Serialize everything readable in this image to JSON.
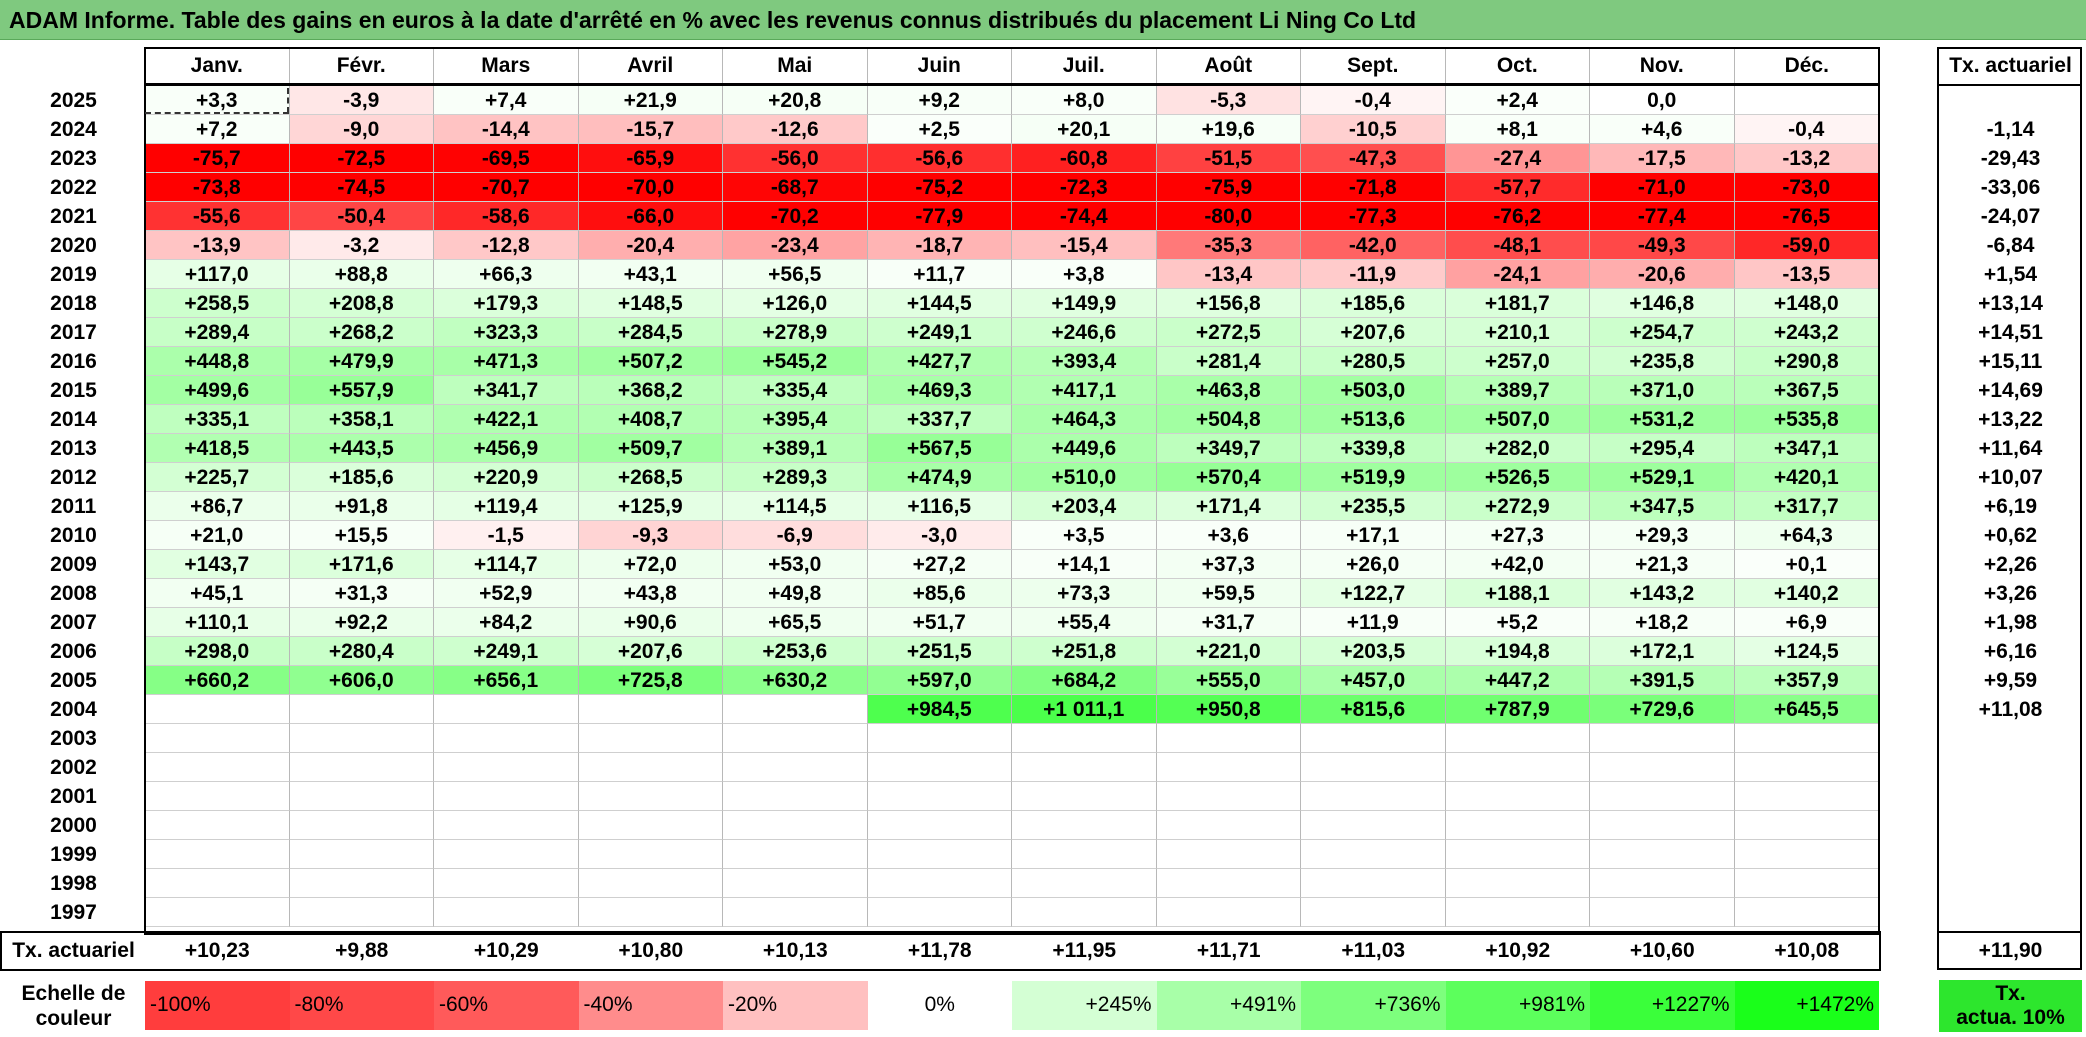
{
  "title": "ADAM Informe. Table des gains en euros à la date d'arrêté en % avec les revenus connus distribués du placement Li Ning Co Ltd",
  "months": [
    "Janv.",
    "Févr.",
    "Mars",
    "Avril",
    "Mai",
    "Juin",
    "Juil.",
    "Août",
    "Sept.",
    "Oct.",
    "Nov.",
    "Déc."
  ],
  "actuarial_header": "Tx. actuariel",
  "footer_label": "Tx. actuariel",
  "scale_label_line1": "Echelle de",
  "scale_label_line2": "couleur",
  "scale": [
    {
      "label": "-100%",
      "color": "#ff3d3d",
      "align": "left"
    },
    {
      "label": "-80%",
      "color": "#ff4848",
      "align": "left"
    },
    {
      "label": "-60%",
      "color": "#ff5a5a",
      "align": "left"
    },
    {
      "label": "-40%",
      "color": "#ff8c8c",
      "align": "left"
    },
    {
      "label": "-20%",
      "color": "#ffc0c0",
      "align": "left"
    },
    {
      "label": "0%",
      "color": "#ffffff",
      "align": "center"
    },
    {
      "label": "+245%",
      "color": "#d4ffd4",
      "align": "right"
    },
    {
      "label": "+491%",
      "color": "#a8ffa8",
      "align": "right"
    },
    {
      "label": "+736%",
      "color": "#7dff7d",
      "align": "right"
    },
    {
      "label": "+981%",
      "color": "#5cff5c",
      "align": "right"
    },
    {
      "label": "+1227%",
      "color": "#3aff3a",
      "align": "right"
    },
    {
      "label": "+1472%",
      "color": "#1aff1a",
      "align": "right"
    }
  ],
  "legend_box_line1": "Tx.",
  "legend_box_line2": "actua. 10%",
  "legend_box_color": "#2de62d",
  "rows": [
    {
      "year": "2025",
      "actuarial": "",
      "values": [
        "+3,3",
        "-3,9",
        "+7,4",
        "+21,9",
        "+20,8",
        "+9,2",
        "+8,0",
        "-5,3",
        "-0,4",
        "+2,4",
        "0,0",
        ""
      ]
    },
    {
      "year": "2024",
      "actuarial": "-1,14",
      "values": [
        "+7,2",
        "-9,0",
        "-14,4",
        "-15,7",
        "-12,6",
        "+2,5",
        "+20,1",
        "+19,6",
        "-10,5",
        "+8,1",
        "+4,6",
        "-0,4"
      ]
    },
    {
      "year": "2023",
      "actuarial": "-29,43",
      "values": [
        "-75,7",
        "-72,5",
        "-69,5",
        "-65,9",
        "-56,0",
        "-56,6",
        "-60,8",
        "-51,5",
        "-47,3",
        "-27,4",
        "-17,5",
        "-13,2"
      ]
    },
    {
      "year": "2022",
      "actuarial": "-33,06",
      "values": [
        "-73,8",
        "-74,5",
        "-70,7",
        "-70,0",
        "-68,7",
        "-75,2",
        "-72,3",
        "-75,9",
        "-71,8",
        "-57,7",
        "-71,0",
        "-73,0"
      ]
    },
    {
      "year": "2021",
      "actuarial": "-24,07",
      "values": [
        "-55,6",
        "-50,4",
        "-58,6",
        "-66,0",
        "-70,2",
        "-77,9",
        "-74,4",
        "-80,0",
        "-77,3",
        "-76,2",
        "-77,4",
        "-76,5"
      ]
    },
    {
      "year": "2020",
      "actuarial": "-6,84",
      "values": [
        "-13,9",
        "-3,2",
        "-12,8",
        "-20,4",
        "-23,4",
        "-18,7",
        "-15,4",
        "-35,3",
        "-42,0",
        "-48,1",
        "-49,3",
        "-59,0"
      ]
    },
    {
      "year": "2019",
      "actuarial": "+1,54",
      "values": [
        "+117,0",
        "+88,8",
        "+66,3",
        "+43,1",
        "+56,5",
        "+11,7",
        "+3,8",
        "-13,4",
        "-11,9",
        "-24,1",
        "-20,6",
        "-13,5"
      ]
    },
    {
      "year": "2018",
      "actuarial": "+13,14",
      "values": [
        "+258,5",
        "+208,8",
        "+179,3",
        "+148,5",
        "+126,0",
        "+144,5",
        "+149,9",
        "+156,8",
        "+185,6",
        "+181,7",
        "+146,8",
        "+148,0"
      ]
    },
    {
      "year": "2017",
      "actuarial": "+14,51",
      "values": [
        "+289,4",
        "+268,2",
        "+323,3",
        "+284,5",
        "+278,9",
        "+249,1",
        "+246,6",
        "+272,5",
        "+207,6",
        "+210,1",
        "+254,7",
        "+243,2"
      ]
    },
    {
      "year": "2016",
      "actuarial": "+15,11",
      "values": [
        "+448,8",
        "+479,9",
        "+471,3",
        "+507,2",
        "+545,2",
        "+427,7",
        "+393,4",
        "+281,4",
        "+280,5",
        "+257,0",
        "+235,8",
        "+290,8"
      ]
    },
    {
      "year": "2015",
      "actuarial": "+14,69",
      "values": [
        "+499,6",
        "+557,9",
        "+341,7",
        "+368,2",
        "+335,4",
        "+469,3",
        "+417,1",
        "+463,8",
        "+503,0",
        "+389,7",
        "+371,0",
        "+367,5"
      ]
    },
    {
      "year": "2014",
      "actuarial": "+13,22",
      "values": [
        "+335,1",
        "+358,1",
        "+422,1",
        "+408,7",
        "+395,4",
        "+337,7",
        "+464,3",
        "+504,8",
        "+513,6",
        "+507,0",
        "+531,2",
        "+535,8"
      ]
    },
    {
      "year": "2013",
      "actuarial": "+11,64",
      "values": [
        "+418,5",
        "+443,5",
        "+456,9",
        "+509,7",
        "+389,1",
        "+567,5",
        "+449,6",
        "+349,7",
        "+339,8",
        "+282,0",
        "+295,4",
        "+347,1"
      ]
    },
    {
      "year": "2012",
      "actuarial": "+10,07",
      "values": [
        "+225,7",
        "+185,6",
        "+220,9",
        "+268,5",
        "+289,3",
        "+474,9",
        "+510,0",
        "+570,4",
        "+519,9",
        "+526,5",
        "+529,1",
        "+420,1"
      ]
    },
    {
      "year": "2011",
      "actuarial": "+6,19",
      "values": [
        "+86,7",
        "+91,8",
        "+119,4",
        "+125,9",
        "+114,5",
        "+116,5",
        "+203,4",
        "+171,4",
        "+235,5",
        "+272,9",
        "+347,5",
        "+317,7"
      ]
    },
    {
      "year": "2010",
      "actuarial": "+0,62",
      "values": [
        "+21,0",
        "+15,5",
        "-1,5",
        "-9,3",
        "-6,9",
        "-3,0",
        "+3,5",
        "+3,6",
        "+17,1",
        "+27,3",
        "+29,3",
        "+64,3"
      ]
    },
    {
      "year": "2009",
      "actuarial": "+2,26",
      "values": [
        "+143,7",
        "+171,6",
        "+114,7",
        "+72,0",
        "+53,0",
        "+27,2",
        "+14,1",
        "+37,3",
        "+26,0",
        "+42,0",
        "+21,3",
        "+0,1"
      ]
    },
    {
      "year": "2008",
      "actuarial": "+3,26",
      "values": [
        "+45,1",
        "+31,3",
        "+52,9",
        "+43,8",
        "+49,8",
        "+85,6",
        "+73,3",
        "+59,5",
        "+122,7",
        "+188,1",
        "+143,2",
        "+140,2"
      ]
    },
    {
      "year": "2007",
      "actuarial": "+1,98",
      "values": [
        "+110,1",
        "+92,2",
        "+84,2",
        "+90,6",
        "+65,5",
        "+51,7",
        "+55,4",
        "+31,7",
        "+11,9",
        "+5,2",
        "+18,2",
        "+6,9"
      ]
    },
    {
      "year": "2006",
      "actuarial": "+6,16",
      "values": [
        "+298,0",
        "+280,4",
        "+249,1",
        "+207,6",
        "+253,6",
        "+251,5",
        "+251,8",
        "+221,0",
        "+203,5",
        "+194,8",
        "+172,1",
        "+124,5"
      ]
    },
    {
      "year": "2005",
      "actuarial": "+9,59",
      "values": [
        "+660,2",
        "+606,0",
        "+656,1",
        "+725,8",
        "+630,2",
        "+597,0",
        "+684,2",
        "+555,0",
        "+457,0",
        "+447,2",
        "+391,5",
        "+357,9"
      ]
    },
    {
      "year": "2004",
      "actuarial": "+11,08",
      "values": [
        "",
        "",
        "",
        "",
        "",
        "+984,5",
        "+1 011,1",
        "+950,8",
        "+815,6",
        "+787,9",
        "+729,6",
        "+645,5"
      ]
    },
    {
      "year": "2003",
      "actuarial": "",
      "values": [
        "",
        "",
        "",
        "",
        "",
        "",
        "",
        "",
        "",
        "",
        "",
        ""
      ]
    },
    {
      "year": "2002",
      "actuarial": "",
      "values": [
        "",
        "",
        "",
        "",
        "",
        "",
        "",
        "",
        "",
        "",
        "",
        ""
      ]
    },
    {
      "year": "2001",
      "actuarial": "",
      "values": [
        "",
        "",
        "",
        "",
        "",
        "",
        "",
        "",
        "",
        "",
        "",
        ""
      ]
    },
    {
      "year": "2000",
      "actuarial": "",
      "values": [
        "",
        "",
        "",
        "",
        "",
        "",
        "",
        "",
        "",
        "",
        "",
        ""
      ]
    },
    {
      "year": "1999",
      "actuarial": "",
      "values": [
        "",
        "",
        "",
        "",
        "",
        "",
        "",
        "",
        "",
        "",
        "",
        ""
      ]
    },
    {
      "year": "1998",
      "actuarial": "",
      "values": [
        "",
        "",
        "",
        "",
        "",
        "",
        "",
        "",
        "",
        "",
        "",
        ""
      ]
    },
    {
      "year": "1997",
      "actuarial": "",
      "values": [
        "",
        "",
        "",
        "",
        "",
        "",
        "",
        "",
        "",
        "",
        "",
        ""
      ]
    }
  ],
  "footer_values": [
    "+10,23",
    "+9,88",
    "+10,29",
    "+10,80",
    "+10,13",
    "+11,78",
    "+11,95",
    "+11,71",
    "+11,03",
    "+10,92",
    "+10,60",
    "+10,08"
  ],
  "footer_actuarial": "+11,90"
}
